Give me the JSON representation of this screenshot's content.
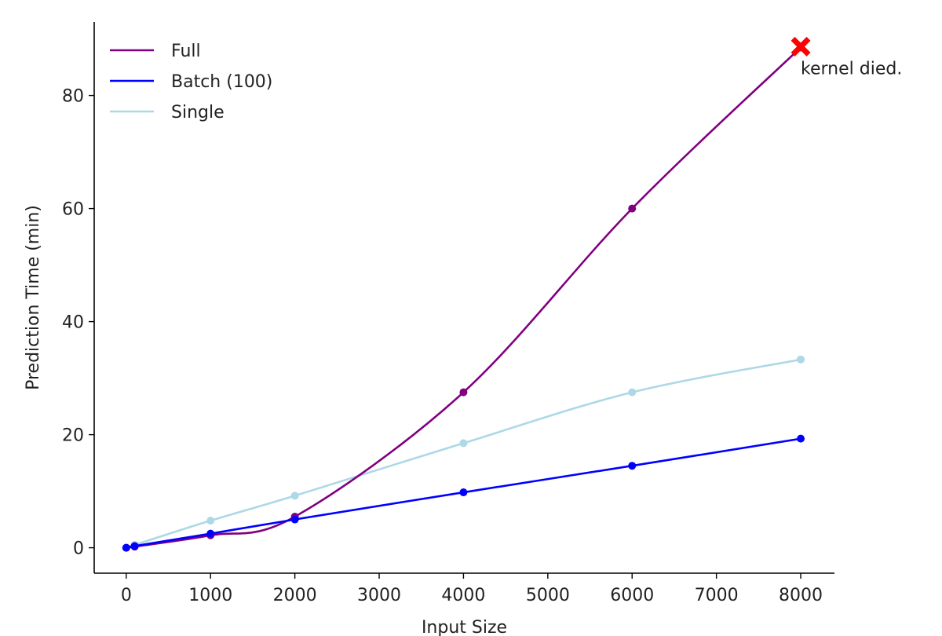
{
  "chart_data": {
    "type": "line",
    "xlabel": "Input Size",
    "ylabel": "Prediction Time (min)",
    "xlim": [
      -380,
      8400
    ],
    "ylim": [
      -4.5,
      93
    ],
    "xticks": [
      0,
      1000,
      2000,
      3000,
      4000,
      5000,
      6000,
      7000,
      8000
    ],
    "yticks": [
      0,
      20,
      40,
      60,
      80
    ],
    "grid": false,
    "legend_position": "top-left",
    "series": [
      {
        "name": "Full",
        "color": "#800080",
        "x": [
          0,
          100,
          1000,
          2000,
          4000,
          6000,
          8000
        ],
        "y": [
          0,
          0.2,
          2.2,
          5.5,
          27.5,
          60.0,
          88.5
        ]
      },
      {
        "name": "Batch (100)",
        "color": "#0000ff",
        "x": [
          0,
          100,
          1000,
          2000,
          4000,
          6000,
          8000
        ],
        "y": [
          0,
          0.3,
          2.5,
          5.0,
          9.8,
          14.5,
          19.3
        ]
      },
      {
        "name": "Single",
        "color": "#add8e6",
        "x": [
          0,
          100,
          1000,
          2000,
          4000,
          6000,
          8000
        ],
        "y": [
          0,
          0.5,
          4.8,
          9.2,
          18.5,
          27.5,
          33.3
        ]
      }
    ],
    "annotations": [
      {
        "text": "kernel died.",
        "marker": "x",
        "marker_color": "#ff0000",
        "x": 8000,
        "y": 88.5
      }
    ]
  }
}
